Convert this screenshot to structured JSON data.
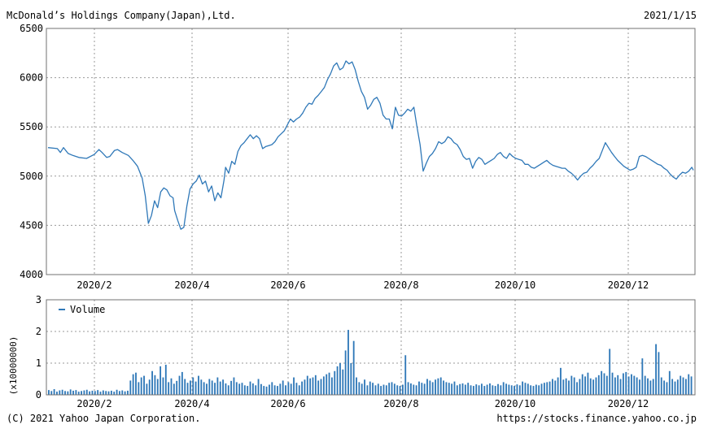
{
  "header": {
    "company": "McDonald’s Holdings Company(Japan),Ltd.",
    "date": "2021/1/15"
  },
  "footer": {
    "copyright": "(C) 2021 Yahoo Japan Corporation.",
    "url": "https://stocks.finance.yahoo.co.jp"
  },
  "colors": {
    "line": "#2f78b8",
    "bar": "#2f78b8",
    "grid": "#9a9a9a",
    "frame": "#707070"
  },
  "chart_data": [
    {
      "type": "line",
      "ylim": [
        4000,
        6500
      ],
      "y_ticks": [
        4000,
        4500,
        5000,
        5500,
        6000,
        6500
      ],
      "x_ticks": [
        "2020/2",
        "2020/4",
        "2020/6",
        "2020/8",
        "2020/10",
        "2020/12"
      ],
      "grid": true,
      "series": [
        {
          "values": [
            [
              0,
              5290
            ],
            [
              6,
              5280
            ],
            [
              8,
              5240
            ],
            [
              10,
              5290
            ],
            [
              13,
              5230
            ],
            [
              16,
              5210
            ],
            [
              20,
              5190
            ],
            [
              25,
              5180
            ],
            [
              30,
              5220
            ],
            [
              33,
              5270
            ],
            [
              35,
              5240
            ],
            [
              38,
              5190
            ],
            [
              40,
              5200
            ],
            [
              43,
              5260
            ],
            [
              45,
              5270
            ],
            [
              48,
              5240
            ],
            [
              52,
              5210
            ],
            [
              55,
              5160
            ],
            [
              58,
              5100
            ],
            [
              61,
              4980
            ],
            [
              63,
              4800
            ],
            [
              65,
              4520
            ],
            [
              67,
              4600
            ],
            [
              69,
              4750
            ],
            [
              71,
              4680
            ],
            [
              73,
              4840
            ],
            [
              75,
              4880
            ],
            [
              77,
              4860
            ],
            [
              79,
              4800
            ],
            [
              81,
              4780
            ],
            [
              82,
              4650
            ],
            [
              84,
              4550
            ],
            [
              86,
              4460
            ],
            [
              88,
              4480
            ],
            [
              90,
              4700
            ],
            [
              92,
              4870
            ],
            [
              94,
              4920
            ],
            [
              96,
              4950
            ],
            [
              98,
              5010
            ],
            [
              100,
              4920
            ],
            [
              102,
              4950
            ],
            [
              104,
              4840
            ],
            [
              106,
              4900
            ],
            [
              108,
              4750
            ],
            [
              110,
              4830
            ],
            [
              112,
              4780
            ],
            [
              114,
              4960
            ],
            [
              115,
              5090
            ],
            [
              117,
              5030
            ],
            [
              119,
              5150
            ],
            [
              121,
              5120
            ],
            [
              123,
              5250
            ],
            [
              125,
              5310
            ],
            [
              127,
              5340
            ],
            [
              129,
              5380
            ],
            [
              131,
              5420
            ],
            [
              133,
              5380
            ],
            [
              135,
              5410
            ],
            [
              137,
              5380
            ],
            [
              139,
              5280
            ],
            [
              141,
              5300
            ],
            [
              143,
              5310
            ],
            [
              145,
              5320
            ],
            [
              147,
              5350
            ],
            [
              149,
              5400
            ],
            [
              151,
              5430
            ],
            [
              153,
              5460
            ],
            [
              155,
              5520
            ],
            [
              157,
              5580
            ],
            [
              159,
              5550
            ],
            [
              161,
              5580
            ],
            [
              163,
              5600
            ],
            [
              165,
              5640
            ],
            [
              167,
              5700
            ],
            [
              169,
              5740
            ],
            [
              171,
              5730
            ],
            [
              173,
              5790
            ],
            [
              175,
              5820
            ],
            [
              177,
              5860
            ],
            [
              179,
              5900
            ],
            [
              181,
              5980
            ],
            [
              183,
              6040
            ],
            [
              185,
              6120
            ],
            [
              187,
              6150
            ],
            [
              189,
              6080
            ],
            [
              191,
              6100
            ],
            [
              193,
              6170
            ],
            [
              195,
              6140
            ],
            [
              197,
              6160
            ],
            [
              199,
              6080
            ],
            [
              201,
              5960
            ],
            [
              203,
              5860
            ],
            [
              205,
              5800
            ],
            [
              207,
              5680
            ],
            [
              209,
              5720
            ],
            [
              211,
              5780
            ],
            [
              213,
              5800
            ],
            [
              215,
              5740
            ],
            [
              217,
              5620
            ],
            [
              219,
              5580
            ],
            [
              221,
              5580
            ],
            [
              223,
              5480
            ],
            [
              225,
              5700
            ],
            [
              227,
              5620
            ],
            [
              229,
              5610
            ],
            [
              231,
              5640
            ],
            [
              233,
              5680
            ],
            [
              235,
              5660
            ],
            [
              237,
              5700
            ],
            [
              239,
              5500
            ],
            [
              241,
              5320
            ],
            [
              243,
              5050
            ],
            [
              245,
              5130
            ],
            [
              247,
              5200
            ],
            [
              249,
              5230
            ],
            [
              251,
              5280
            ],
            [
              253,
              5350
            ],
            [
              255,
              5330
            ],
            [
              257,
              5350
            ],
            [
              259,
              5400
            ],
            [
              261,
              5380
            ],
            [
              263,
              5340
            ],
            [
              265,
              5320
            ],
            [
              267,
              5270
            ],
            [
              269,
              5200
            ],
            [
              271,
              5170
            ],
            [
              273,
              5180
            ],
            [
              275,
              5080
            ],
            [
              277,
              5150
            ],
            [
              279,
              5190
            ],
            [
              281,
              5170
            ],
            [
              283,
              5120
            ],
            [
              285,
              5140
            ],
            [
              287,
              5160
            ],
            [
              289,
              5180
            ],
            [
              291,
              5220
            ],
            [
              293,
              5240
            ],
            [
              295,
              5200
            ],
            [
              297,
              5180
            ],
            [
              299,
              5230
            ],
            [
              301,
              5200
            ],
            [
              303,
              5180
            ],
            [
              305,
              5170
            ],
            [
              307,
              5160
            ],
            [
              309,
              5120
            ],
            [
              311,
              5120
            ],
            [
              313,
              5090
            ],
            [
              315,
              5080
            ],
            [
              317,
              5100
            ],
            [
              319,
              5120
            ],
            [
              321,
              5140
            ],
            [
              323,
              5160
            ],
            [
              325,
              5130
            ],
            [
              327,
              5110
            ],
            [
              329,
              5100
            ],
            [
              331,
              5090
            ],
            [
              333,
              5080
            ],
            [
              335,
              5080
            ],
            [
              337,
              5050
            ],
            [
              339,
              5030
            ],
            [
              341,
              5000
            ],
            [
              343,
              4960
            ],
            [
              345,
              5000
            ],
            [
              347,
              5030
            ],
            [
              349,
              5040
            ],
            [
              351,
              5080
            ],
            [
              353,
              5110
            ],
            [
              355,
              5150
            ],
            [
              357,
              5180
            ],
            [
              359,
              5260
            ],
            [
              361,
              5340
            ],
            [
              363,
              5290
            ],
            [
              365,
              5240
            ],
            [
              367,
              5200
            ],
            [
              369,
              5160
            ],
            [
              371,
              5130
            ],
            [
              373,
              5100
            ],
            [
              375,
              5080
            ],
            [
              377,
              5060
            ],
            [
              379,
              5070
            ],
            [
              381,
              5090
            ],
            [
              383,
              5200
            ],
            [
              385,
              5210
            ],
            [
              387,
              5200
            ],
            [
              389,
              5180
            ],
            [
              391,
              5160
            ],
            [
              393,
              5140
            ],
            [
              395,
              5120
            ],
            [
              397,
              5110
            ],
            [
              399,
              5080
            ],
            [
              401,
              5060
            ],
            [
              403,
              5020
            ],
            [
              405,
              4990
            ],
            [
              407,
              4970
            ],
            [
              409,
              5010
            ],
            [
              411,
              5040
            ],
            [
              413,
              5030
            ],
            [
              415,
              5050
            ],
            [
              417,
              5090
            ],
            [
              418,
              5060
            ]
          ]
        }
      ]
    },
    {
      "type": "bar",
      "ylim": [
        0,
        3
      ],
      "y_ticks": [
        0,
        1,
        2,
        3
      ],
      "ylabel": "(x10000000)",
      "x_ticks": [
        "2020/2",
        "2020/4",
        "2020/6",
        "2020/8",
        "2020/10",
        "2020/12"
      ],
      "grid": true,
      "legend": "top-left",
      "series": [
        {
          "name": "Volume",
          "values": [
            0.15,
            0.12,
            0.18,
            0.1,
            0.14,
            0.16,
            0.12,
            0.11,
            0.17,
            0.13,
            0.15,
            0.1,
            0.12,
            0.14,
            0.16,
            0.11,
            0.13,
            0.12,
            0.15,
            0.1,
            0.14,
            0.12,
            0.11,
            0.13,
            0.1,
            0.16,
            0.12,
            0.14,
            0.11,
            0.13,
            0.45,
            0.65,
            0.7,
            0.4,
            0.55,
            0.6,
            0.35,
            0.48,
            0.75,
            0.62,
            0.5,
            0.9,
            0.55,
            0.95,
            0.4,
            0.52,
            0.35,
            0.44,
            0.6,
            0.72,
            0.5,
            0.38,
            0.45,
            0.55,
            0.42,
            0.6,
            0.48,
            0.4,
            0.35,
            0.5,
            0.45,
            0.38,
            0.55,
            0.42,
            0.48,
            0.36,
            0.3,
            0.44,
            0.55,
            0.4,
            0.35,
            0.38,
            0.3,
            0.28,
            0.42,
            0.36,
            0.3,
            0.5,
            0.34,
            0.28,
            0.26,
            0.32,
            0.4,
            0.3,
            0.28,
            0.35,
            0.45,
            0.3,
            0.4,
            0.35,
            0.55,
            0.38,
            0.3,
            0.42,
            0.48,
            0.6,
            0.52,
            0.55,
            0.62,
            0.45,
            0.5,
            0.58,
            0.65,
            0.7,
            0.55,
            0.75,
            0.9,
            1.0,
            0.8,
            1.4,
            2.05,
            1.0,
            1.7,
            0.55,
            0.4,
            0.35,
            0.48,
            0.3,
            0.42,
            0.38,
            0.3,
            0.35,
            0.28,
            0.32,
            0.3,
            0.38,
            0.4,
            0.35,
            0.3,
            0.28,
            0.32,
            1.25,
            0.4,
            0.36,
            0.32,
            0.3,
            0.42,
            0.38,
            0.35,
            0.5,
            0.45,
            0.4,
            0.48,
            0.52,
            0.55,
            0.45,
            0.4,
            0.38,
            0.35,
            0.42,
            0.3,
            0.34,
            0.36,
            0.32,
            0.38,
            0.3,
            0.28,
            0.33,
            0.3,
            0.35,
            0.28,
            0.32,
            0.36,
            0.3,
            0.28,
            0.34,
            0.3,
            0.4,
            0.35,
            0.32,
            0.3,
            0.28,
            0.33,
            0.3,
            0.42,
            0.38,
            0.35,
            0.3,
            0.28,
            0.32,
            0.3,
            0.35,
            0.38,
            0.4,
            0.42,
            0.5,
            0.45,
            0.55,
            0.85,
            0.48,
            0.52,
            0.45,
            0.6,
            0.55,
            0.4,
            0.5,
            0.65,
            0.58,
            0.7,
            0.52,
            0.48,
            0.55,
            0.62,
            0.75,
            0.68,
            0.6,
            1.45,
            0.7,
            0.55,
            0.62,
            0.5,
            0.68,
            0.72,
            0.58,
            0.65,
            0.6,
            0.55,
            0.48,
            1.15,
            0.6,
            0.52,
            0.45,
            0.5,
            1.6,
            1.35,
            0.55,
            0.45,
            0.4,
            0.75,
            0.5,
            0.42,
            0.48,
            0.6,
            0.55,
            0.5,
            0.65,
            0.58
          ]
        }
      ]
    }
  ]
}
